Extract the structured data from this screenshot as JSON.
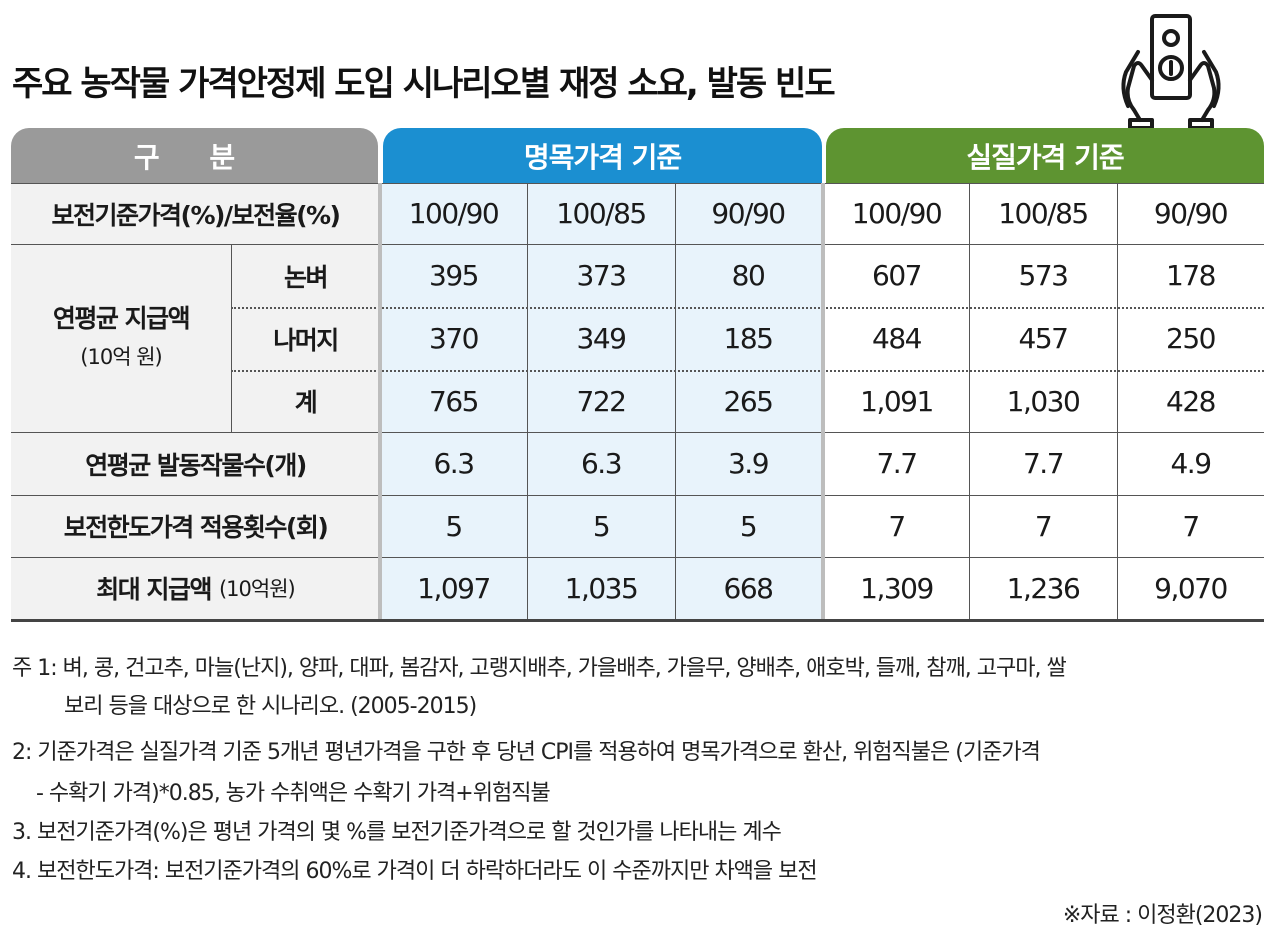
{
  "title": "주요 농작물 가격안정제 도입 시나리오별 재정 소요, 발동 빈도",
  "icon": "hand-holding-money-icon",
  "colors": {
    "gray": "#9a9a9a",
    "blue": "#1b8fd1",
    "green": "#5e9431",
    "blue_bg": "#e8f3fb"
  },
  "chart_data": {
    "type": "table",
    "header": {
      "category": "구 분",
      "nominal": "명목가격 기준",
      "real": "실질가격 기준"
    },
    "columns": [
      "100/90",
      "100/85",
      "90/90",
      "100/90",
      "100/85",
      "90/90"
    ],
    "rows": [
      {
        "group": "",
        "label": "보전기준가격(%)/보전율(%)",
        "values": []
      },
      {
        "group": "연평균 지급액",
        "group_unit": "(10억 원)",
        "label": "논벼",
        "values": [
          "395",
          "373",
          "80",
          "607",
          "573",
          "178"
        ]
      },
      {
        "group": "연평균 지급액",
        "group_unit": "(10억 원)",
        "label": "나머지",
        "values": [
          "370",
          "349",
          "185",
          "484",
          "457",
          "250"
        ]
      },
      {
        "group": "연평균 지급액",
        "group_unit": "(10억 원)",
        "label": "계",
        "values": [
          "765",
          "722",
          "265",
          "1,091",
          "1,030",
          "428"
        ]
      },
      {
        "group": "",
        "label": "연평균 발동작물수(개)",
        "values": [
          "6.3",
          "6.3",
          "3.9",
          "7.7",
          "7.7",
          "4.9"
        ]
      },
      {
        "group": "",
        "label": "보전한도가격 적용횟수(회)",
        "values": [
          "5",
          "5",
          "5",
          "7",
          "7",
          "7"
        ]
      },
      {
        "group": "",
        "label": "최대 지급액",
        "label_unit": "(10억원)",
        "values": [
          "1,097",
          "1,035",
          "668",
          "1,309",
          "1,236",
          "9,070"
        ]
      }
    ]
  },
  "notes": {
    "n1_line1": "주 1: 벼, 콩, 건고추, 마늘(난지), 양파, 대파, 봄감자, 고랭지배추, 가을배추, 가을무, 양배추, 애호박, 들깨, 참깨, 고구마, 쌀",
    "n1_line2": "보리 등을 대상으로 한 시나리오. (2005-2015)",
    "n2_line1": "2: 기준가격은 실질가격 기준 5개년 평년가격을 구한 후 당년 CPI를 적용하여 명목가격으로 환산, 위험직불은 (기준가격",
    "n2_line2": "- 수확기 가격)*0.85, 농가 수취액은 수확기 가격+위험직불",
    "n3": "3. 보전기준가격(%)은 평년 가격의 몇 %를 보전기준가격으로 할 것인가를 나타내는 계수",
    "n4": "4. 보전한도가격: 보전기준가격의 60%로 가격이 더 하락하더라도 이 수준까지만 차액을 보전"
  },
  "source": "※자료 : 이정환(2023)"
}
